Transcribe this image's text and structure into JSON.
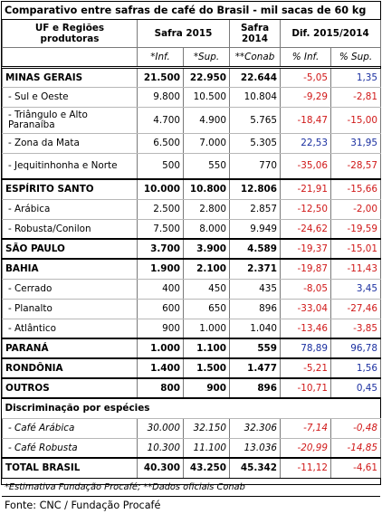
{
  "title": "Comparativo entre safras de café do Brasil - mil sacas de 60 kg",
  "headers": {
    "uf": "UF e Regiões produtoras",
    "safra2015": "Safra 2015",
    "safra2014": "Safra 2014",
    "dif": "Dif. 2015/2014",
    "inf": "*Inf.",
    "sup": "*Sup.",
    "conab": "**Conab",
    "pct_inf": "% Inf.",
    "pct_sup": "% Sup."
  },
  "rows": [
    {
      "label": "MINAS GERAIS",
      "level": "state",
      "inf": "21.500",
      "sup": "22.950",
      "conab": "22.644",
      "pinf": "-5,05",
      "psup": "1,35",
      "tall": false,
      "first": true
    },
    {
      "label": "- Sul e Oeste",
      "level": "sub",
      "inf": "9.800",
      "sup": "10.500",
      "conab": "10.804",
      "pinf": "-9,29",
      "psup": "-2,81",
      "tall": false
    },
    {
      "label": "- Triângulo e Alto Paranaíba",
      "level": "sub",
      "inf": "4.700",
      "sup": "4.900",
      "conab": "5.765",
      "pinf": "-18,47",
      "psup": "-15,00",
      "tall": true
    },
    {
      "label": "- Zona da Mata",
      "level": "sub",
      "inf": "6.500",
      "sup": "7.000",
      "conab": "5.305",
      "pinf": "22,53",
      "psup": "31,95",
      "tall": false
    },
    {
      "label": "- Jequitinhonha e Norte",
      "level": "sub",
      "inf": "500",
      "sup": "550",
      "conab": "770",
      "pinf": "-35,06",
      "psup": "-28,57",
      "tall": true
    },
    {
      "label": "ESPÍRITO SANTO",
      "level": "state",
      "inf": "10.000",
      "sup": "10.800",
      "conab": "12.806",
      "pinf": "-21,91",
      "psup": "-15,66",
      "tall": false
    },
    {
      "label": "- Arábica",
      "level": "sub",
      "inf": "2.500",
      "sup": "2.800",
      "conab": "2.857",
      "pinf": "-12,50",
      "psup": "-2,00",
      "tall": false
    },
    {
      "label": "- Robusta/Conilon",
      "level": "sub",
      "inf": "7.500",
      "sup": "8.000",
      "conab": "9.949",
      "pinf": "-24,62",
      "psup": "-19,59",
      "tall": false
    },
    {
      "label": "SÃO PAULO",
      "level": "state",
      "inf": "3.700",
      "sup": "3.900",
      "conab": "4.589",
      "pinf": "-19,37",
      "psup": "-15,01",
      "tall": false
    },
    {
      "label": "BAHIA",
      "level": "state",
      "inf": "1.900",
      "sup": "2.100",
      "conab": "2.371",
      "pinf": "-19,87",
      "psup": "-11,43",
      "tall": false
    },
    {
      "label": "- Cerrado",
      "level": "sub",
      "inf": "400",
      "sup": "450",
      "conab": "435",
      "pinf": "-8,05",
      "psup": "3,45",
      "tall": false
    },
    {
      "label": "- Planalto",
      "level": "sub",
      "inf": "600",
      "sup": "650",
      "conab": "896",
      "pinf": "-33,04",
      "psup": "-27,46",
      "tall": false
    },
    {
      "label": "- Atlântico",
      "level": "sub",
      "inf": "900",
      "sup": "1.000",
      "conab": "1.040",
      "pinf": "-13,46",
      "psup": "-3,85",
      "tall": false
    },
    {
      "label": "PARANÁ",
      "level": "state",
      "inf": "1.000",
      "sup": "1.100",
      "conab": "559",
      "pinf": "78,89",
      "psup": "96,78",
      "tall": false
    },
    {
      "label": "RONDÔNIA",
      "level": "state",
      "inf": "1.400",
      "sup": "1.500",
      "conab": "1.477",
      "pinf": "-5,21",
      "psup": "1,56",
      "tall": false
    },
    {
      "label": "OUTROS",
      "level": "state",
      "inf": "800",
      "sup": "900",
      "conab": "896",
      "pinf": "-10,71",
      "psup": "0,45",
      "tall": false
    }
  ],
  "species_title": "Discriminação por espécies",
  "species": [
    {
      "label": "- Café Arábica",
      "inf": "30.000",
      "sup": "32.150",
      "conab": "32.306",
      "pinf": "-7,14",
      "psup": "-0,48"
    },
    {
      "label": "- Café Robusta",
      "inf": "10.300",
      "sup": "11.100",
      "conab": "13.036",
      "pinf": "-20,99",
      "psup": "-14,85"
    }
  ],
  "total": {
    "label": "TOTAL BRASIL",
    "inf": "40.300",
    "sup": "43.250",
    "conab": "45.342",
    "pinf": "-11,12",
    "psup": "-4,61"
  },
  "note": "*Estimativa Fundação Procafé; **Dados oficiais Conab",
  "source": "Fonte: CNC / Fundação Procafé",
  "colors": {
    "negative": "#d01818",
    "positive": "#1a2fa0"
  }
}
